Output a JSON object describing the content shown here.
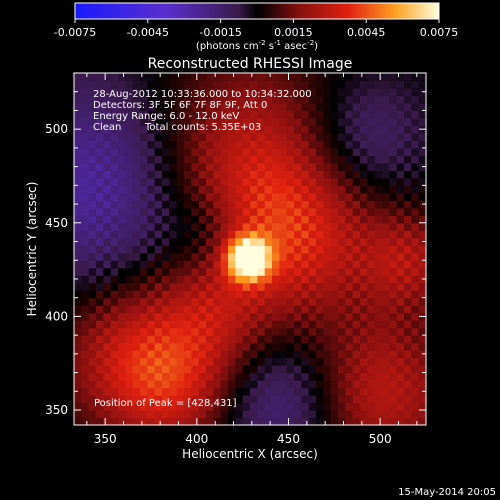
{
  "chart_data": {
    "type": "heatmap",
    "title": "Reconstructed RHESSI Image",
    "xlabel": "Heliocentric X (arcsec)",
    "ylabel": "Heliocentric Y (arcsec)",
    "xlim": [
      333,
      525
    ],
    "ylim": [
      342,
      530
    ],
    "x_ticks": [
      350,
      400,
      450,
      500
    ],
    "y_ticks": [
      350,
      400,
      450,
      500
    ],
    "colorbar": {
      "ticks": [
        "-0.0075",
        "-0.0045",
        "-0.0015",
        "0.0015",
        "0.0045",
        "0.0075"
      ],
      "range": [
        -0.0075,
        0.0075
      ],
      "units_prefix": "(photons cm",
      "units_sup1": "-2",
      "units_mid1": " s",
      "units_sup2": "-1",
      "units_mid2": " asec",
      "units_sup3": "-2",
      "units_suffix": ")"
    },
    "annotations": {
      "time": "28-Aug-2012 10:33:36.000 to 10:34:32.000",
      "detectors": "Detectors: 3F 5F 6F 7F 8F 9F, Att 0",
      "energy": "Energy Range: 6.0 - 12.0 keV",
      "method": "Clean",
      "counts": "Total counts: 5.35E+03",
      "peak": "Position of Peak = [428,431]"
    },
    "peak": [
      428,
      431
    ],
    "peak_value": 0.0075,
    "grid": false,
    "legend": "colorbar-top"
  },
  "footer": {
    "date": "15-May-2014 20:05"
  }
}
